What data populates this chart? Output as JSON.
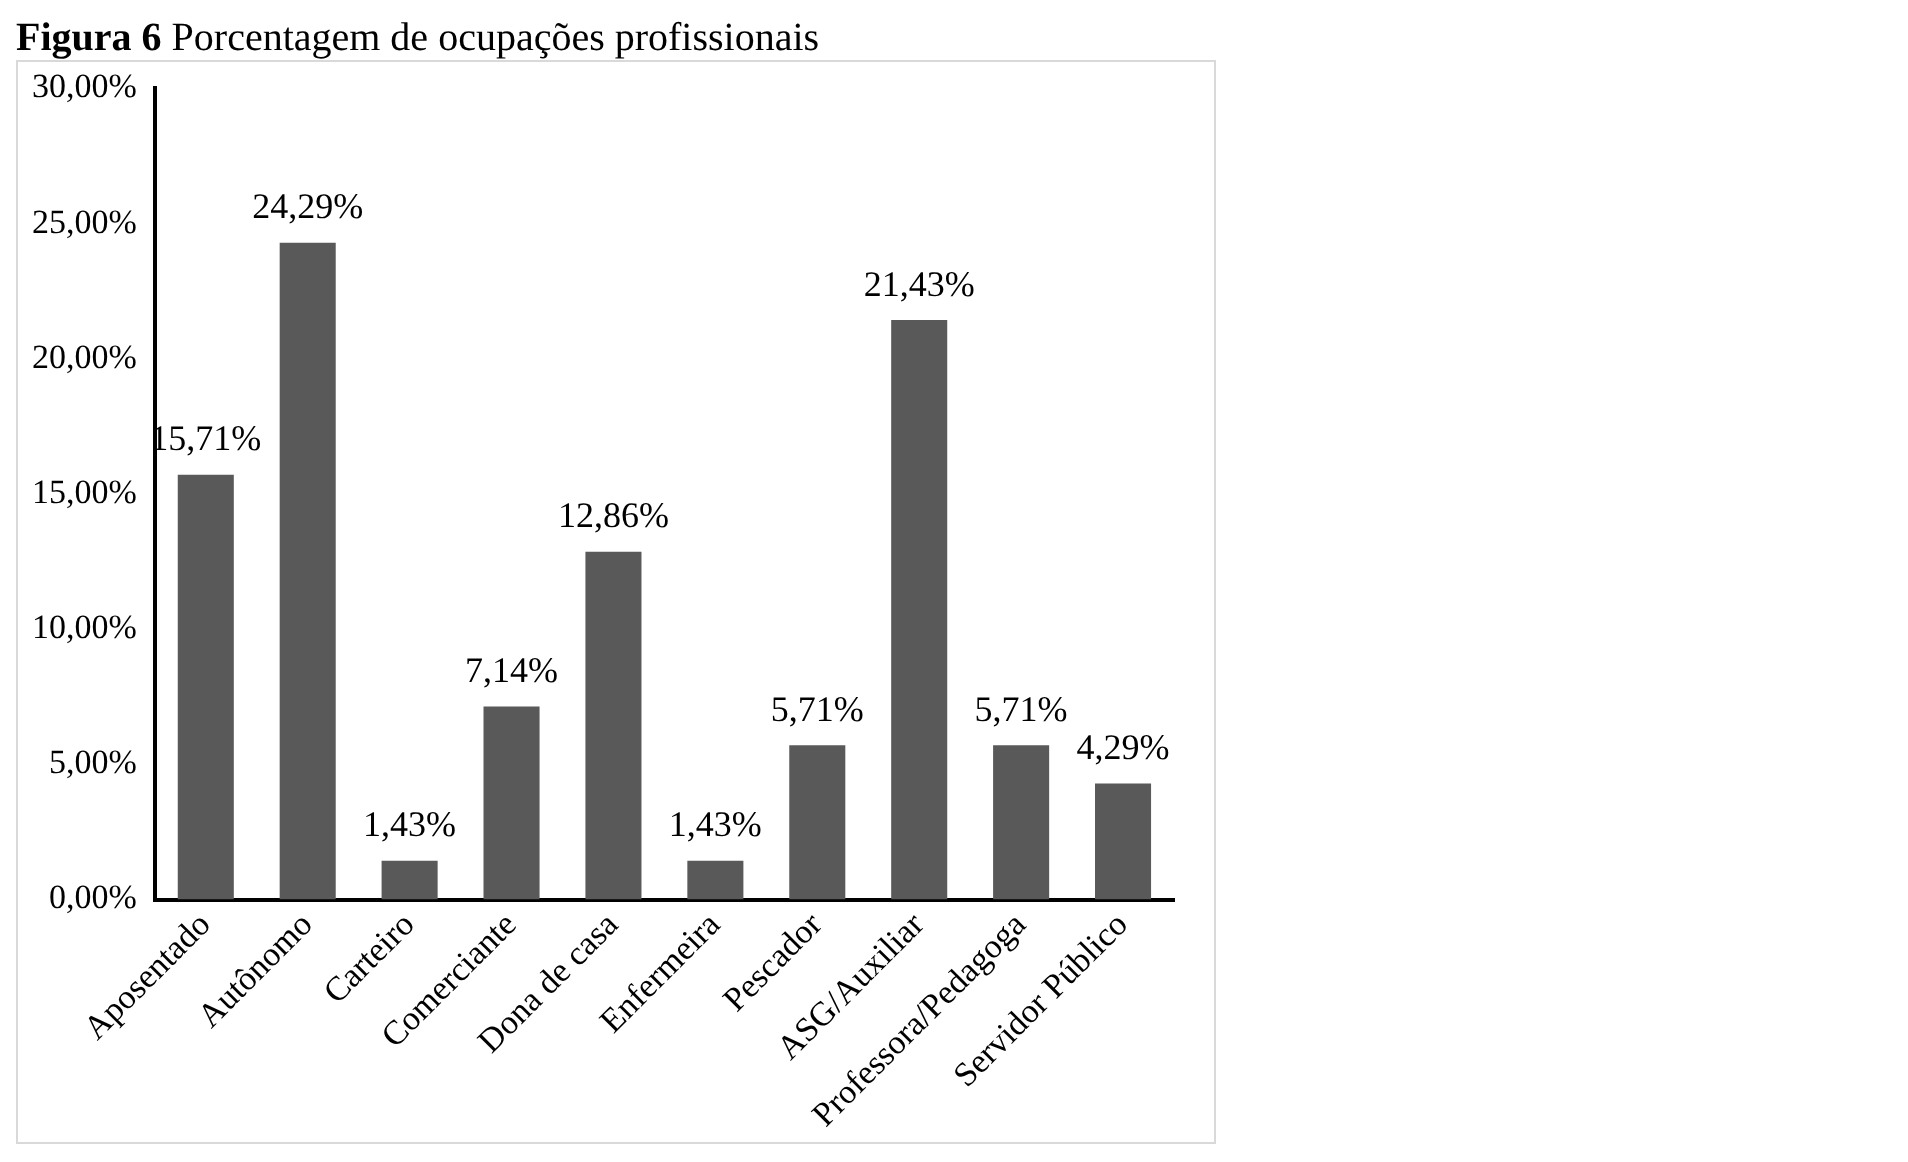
{
  "chart_data": {
    "type": "bar",
    "title": "Figura 6 Porcentagem de ocupações profissionais",
    "categories": [
      "Aposentado",
      "Autônomo",
      "Carteiro",
      "Comerciante",
      "Dona de casa",
      "Enfermeira",
      "Pescador",
      "ASG/Auxiliar",
      "Professora/Pedagoga",
      "Servidor Público"
    ],
    "values": [
      15.71,
      24.29,
      1.43,
      7.14,
      12.86,
      1.43,
      5.71,
      21.43,
      5.71,
      4.29
    ],
    "value_labels": [
      "15,71%",
      "24,29%",
      "1,43%",
      "7,14%",
      "12,86%",
      "1,43%",
      "5,71%",
      "21,43%",
      "5,71%",
      "4,29%"
    ],
    "color": "#595959",
    "ylim": [
      0,
      30
    ],
    "yticks": [
      {
        "value": 0,
        "label": "0,00%"
      },
      {
        "value": 5,
        "label": "5,00%"
      },
      {
        "value": 10,
        "label": "10,00%"
      },
      {
        "value": 15,
        "label": "15,00%"
      },
      {
        "value": 20,
        "label": "20,00%"
      },
      {
        "value": 25,
        "label": "25,00%"
      },
      {
        "value": 30,
        "label": "30,00%"
      }
    ],
    "grid": false,
    "legend": false
  }
}
